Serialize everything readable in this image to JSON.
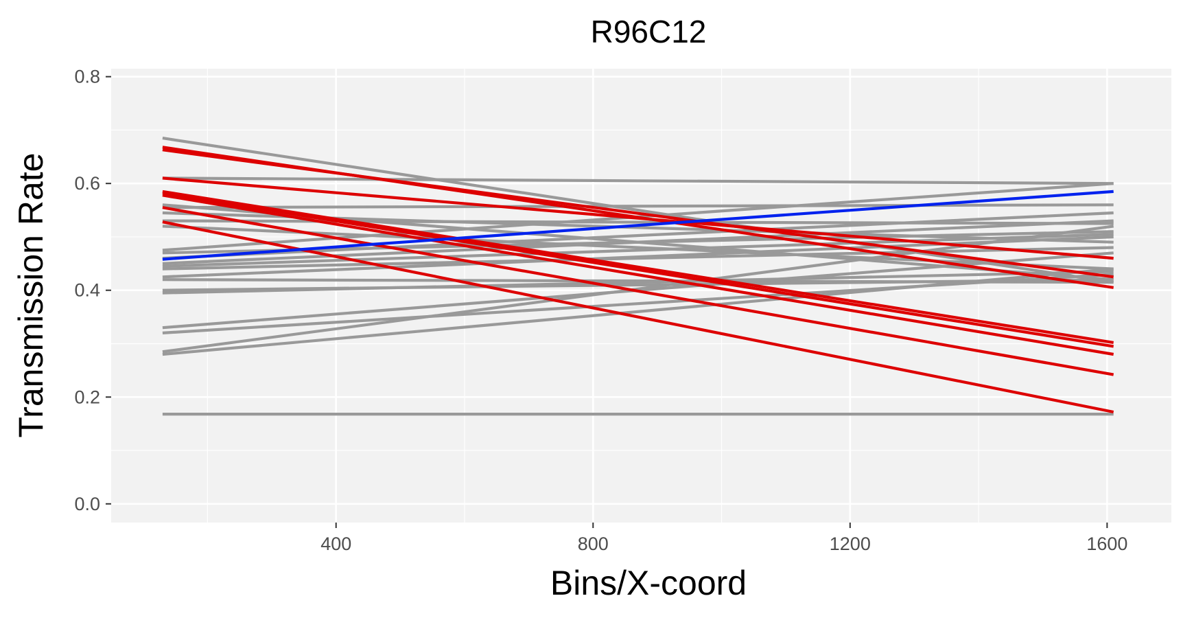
{
  "chart_data": {
    "type": "line",
    "title": "R96C12",
    "xlabel": "Bins/X-coord",
    "ylabel": "Transmission Rate",
    "xlim": [
      50,
      1700
    ],
    "ylim": [
      -0.035,
      0.815
    ],
    "x_ticks": [
      400,
      800,
      1200,
      1600
    ],
    "x_tick_labels": [
      "400",
      "800",
      "1200",
      "1600"
    ],
    "x_minor_ticks": [
      200,
      600,
      1000,
      1400
    ],
    "y_ticks": [
      0.0,
      0.2,
      0.4,
      0.6,
      0.8
    ],
    "y_tick_labels": [
      "0.0",
      "0.2",
      "0.4",
      "0.6",
      "0.8"
    ],
    "y_minor_ticks": [
      0.1,
      0.3,
      0.5,
      0.7
    ],
    "grid": true,
    "legend": "none",
    "colors": {
      "panel_background": "#f2f2f2",
      "grid": "#ffffff",
      "neutral": "#999999",
      "decreasing": "#dd0000",
      "increasing": "#0022ee"
    },
    "x": [
      130,
      1610
    ],
    "series": [
      {
        "group": "neutral",
        "values": [
          0.685,
          0.415
        ]
      },
      {
        "group": "neutral",
        "values": [
          0.61,
          0.6
        ]
      },
      {
        "group": "neutral",
        "values": [
          0.56,
          0.42
        ]
      },
      {
        "group": "neutral",
        "values": [
          0.555,
          0.56
        ]
      },
      {
        "group": "neutral",
        "values": [
          0.545,
          0.49
        ]
      },
      {
        "group": "neutral",
        "values": [
          0.53,
          0.525
        ]
      },
      {
        "group": "neutral",
        "values": [
          0.52,
          0.44
        ]
      },
      {
        "group": "neutral",
        "values": [
          0.475,
          0.6
        ]
      },
      {
        "group": "neutral",
        "values": [
          0.47,
          0.51
        ]
      },
      {
        "group": "neutral",
        "values": [
          0.46,
          0.545
        ]
      },
      {
        "group": "neutral",
        "values": [
          0.45,
          0.53
        ]
      },
      {
        "group": "neutral",
        "values": [
          0.445,
          0.505
        ]
      },
      {
        "group": "neutral",
        "values": [
          0.44,
          0.48
        ]
      },
      {
        "group": "neutral",
        "values": [
          0.425,
          0.5
        ]
      },
      {
        "group": "neutral",
        "values": [
          0.42,
          0.415
        ]
      },
      {
        "group": "neutral",
        "values": [
          0.4,
          0.42
        ]
      },
      {
        "group": "neutral",
        "values": [
          0.395,
          0.435
        ]
      },
      {
        "group": "neutral",
        "values": [
          0.33,
          0.47
        ]
      },
      {
        "group": "neutral",
        "values": [
          0.32,
          0.43
        ]
      },
      {
        "group": "neutral",
        "values": [
          0.285,
          0.52
        ]
      },
      {
        "group": "neutral",
        "values": [
          0.28,
          0.44
        ]
      },
      {
        "group": "neutral",
        "values": [
          0.168,
          0.168
        ]
      },
      {
        "group": "decreasing",
        "values": [
          0.668,
          0.405
        ]
      },
      {
        "group": "decreasing",
        "values": [
          0.663,
          0.425
        ]
      },
      {
        "group": "decreasing",
        "values": [
          0.61,
          0.46
        ]
      },
      {
        "group": "decreasing",
        "values": [
          0.585,
          0.302
        ]
      },
      {
        "group": "decreasing",
        "values": [
          0.582,
          0.295
        ]
      },
      {
        "group": "decreasing",
        "values": [
          0.578,
          0.28
        ]
      },
      {
        "group": "decreasing",
        "values": [
          0.555,
          0.242
        ]
      },
      {
        "group": "decreasing",
        "values": [
          0.528,
          0.172
        ]
      },
      {
        "group": "increasing",
        "values": [
          0.458,
          0.585
        ]
      }
    ]
  }
}
